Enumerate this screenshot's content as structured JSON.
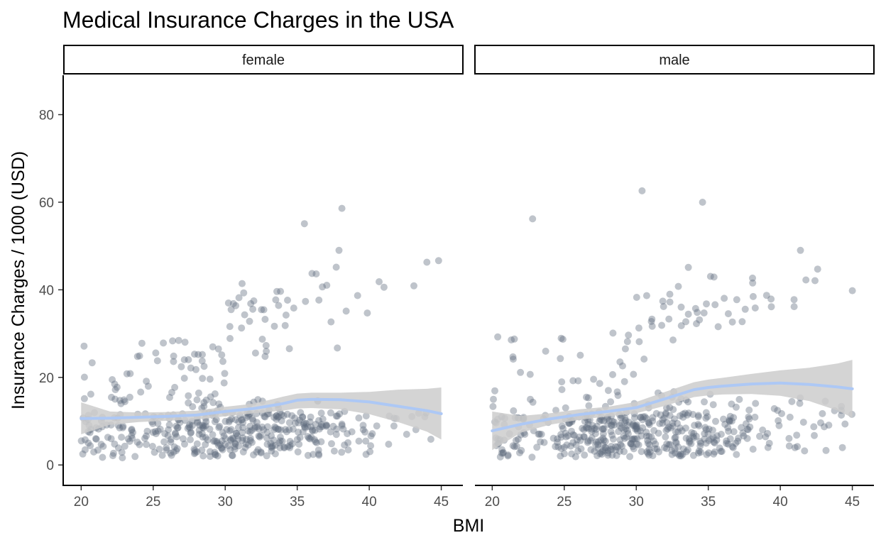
{
  "chart_data": {
    "type": "scatter",
    "title": "Medical Insurance Charges in the USA",
    "xlabel": "BMI",
    "ylabel": "Insurance Charges / 1000 (USD)",
    "xlim": [
      18.8,
      46.5
    ],
    "ylim": [
      -4.5,
      89
    ],
    "xticks": [
      20,
      25,
      30,
      35,
      40,
      45
    ],
    "yticks": [
      0,
      20,
      40,
      60,
      80
    ],
    "grid": false,
    "colors": {
      "points": "#5f6b7c",
      "smooth_line": "#adc8f5",
      "ribbon": "#cccccc"
    },
    "facets": [
      {
        "label": "female",
        "smooth": {
          "x": [
            20,
            22,
            24,
            26,
            28,
            30,
            32,
            34,
            35,
            36,
            38,
            40,
            42,
            44,
            45
          ],
          "y": [
            10.6,
            10.7,
            10.9,
            11.1,
            11.4,
            12.2,
            12.9,
            14.0,
            14.8,
            15.0,
            14.9,
            14.4,
            13.4,
            12.4,
            11.7
          ],
          "lower": [
            7.0,
            9.2,
            9.8,
            10.1,
            10.4,
            11.1,
            11.8,
            12.4,
            12.9,
            13.0,
            12.7,
            11.6,
            9.8,
            7.6,
            5.8
          ],
          "upper": [
            14.3,
            12.2,
            12.0,
            12.1,
            12.4,
            13.3,
            14.0,
            15.6,
            16.3,
            16.5,
            16.5,
            16.7,
            17.2,
            17.4,
            17.7
          ]
        }
      },
      {
        "label": "male",
        "smooth": {
          "x": [
            20,
            22,
            24,
            26,
            28,
            30,
            32,
            34,
            35,
            36,
            38,
            40,
            42,
            44,
            45
          ],
          "y": [
            7.8,
            9.3,
            10.5,
            11.5,
            12.2,
            13.1,
            15.1,
            17.2,
            17.7,
            18.0,
            18.5,
            18.7,
            18.4,
            17.8,
            17.4
          ],
          "lower": [
            3.4,
            7.4,
            9.2,
            10.3,
            11.1,
            11.8,
            13.5,
            15.5,
            15.9,
            16.1,
            16.2,
            15.8,
            14.6,
            12.4,
            10.8
          ],
          "upper": [
            12.2,
            11.2,
            11.8,
            12.7,
            13.3,
            14.4,
            16.7,
            18.9,
            19.5,
            19.9,
            20.8,
            21.6,
            22.2,
            23.2,
            24.0
          ]
        }
      }
    ]
  }
}
